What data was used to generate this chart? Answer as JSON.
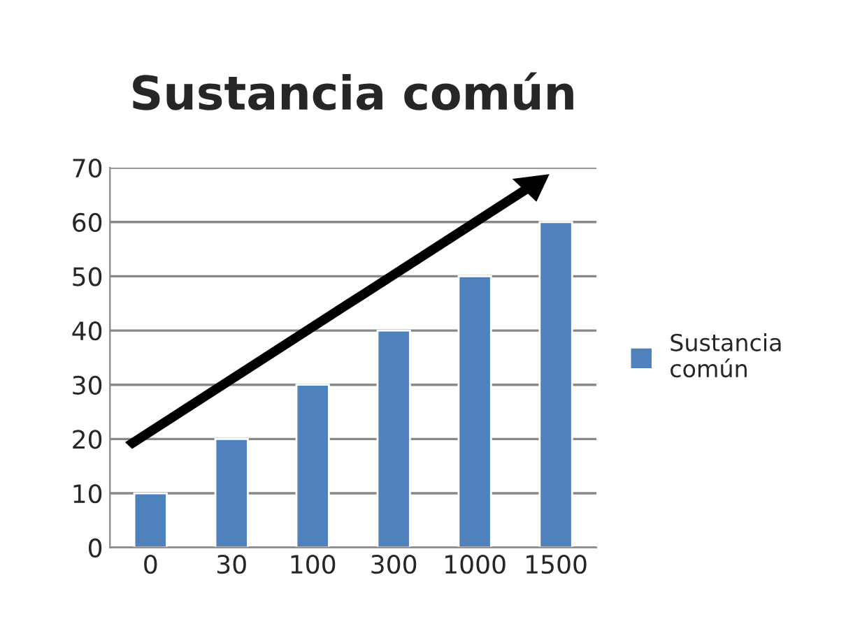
{
  "chart_data": {
    "type": "bar",
    "title": "Sustancia común",
    "categories": [
      "0",
      "30",
      "100",
      "300",
      "1000",
      "1500"
    ],
    "series": [
      {
        "name": "Sustancia común",
        "color": "#4f81bd",
        "values": [
          10,
          20,
          30,
          40,
          50,
          60
        ]
      }
    ],
    "ylim": [
      0,
      70
    ],
    "yticks": [
      0,
      10,
      20,
      30,
      40,
      50,
      60,
      70
    ],
    "grid": "y",
    "legend": "right"
  }
}
